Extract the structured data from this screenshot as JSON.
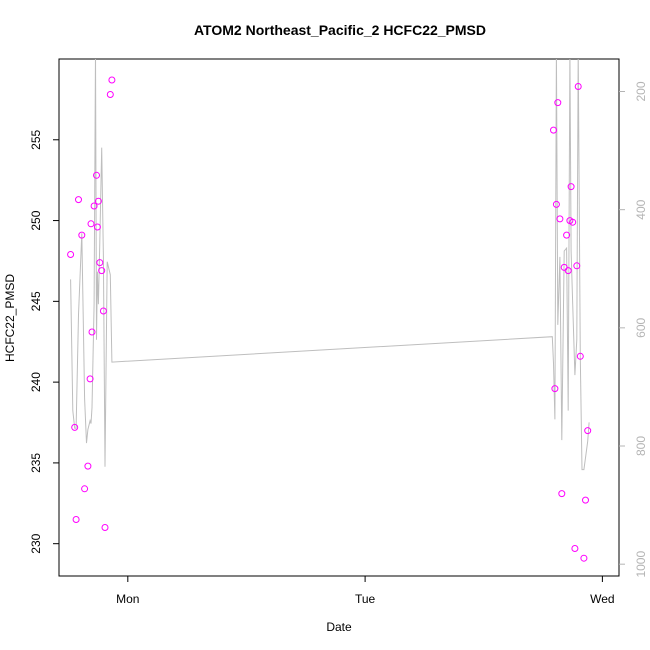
{
  "chart_data": {
    "type": "scatter",
    "title": "ATOM2 Northeast_Pacific_2 HCFC22_PMSD",
    "xlabel": "Date",
    "ylabel": "HCFC22_PMSD",
    "x_ticks": [
      {
        "x": 1.0,
        "label": "Mon"
      },
      {
        "x": 2.0,
        "label": "Tue"
      },
      {
        "x": 3.0,
        "label": "Wed"
      }
    ],
    "y_ticks": [
      230,
      235,
      240,
      245,
      250,
      255
    ],
    "y_right_ticks": [
      200,
      400,
      600,
      800,
      1000
    ],
    "xlim": [
      0.71,
      3.07
    ],
    "ylim": [
      228.0,
      260.0
    ],
    "y_right_lim": [
      145,
      1020
    ],
    "colors": {
      "points": "#ff00ff",
      "line": "#bebebe",
      "axis": "#000000",
      "right_axis": "#b4b4b4"
    },
    "series": [
      {
        "type": "points",
        "x": [
          0.759,
          0.776,
          0.782,
          0.792,
          0.806,
          0.818,
          0.832,
          0.841,
          0.845,
          0.849,
          0.858,
          0.868,
          0.872,
          0.876,
          0.882,
          0.89,
          0.897,
          0.904,
          0.926,
          0.933,
          2.794,
          2.8,
          2.806,
          2.812,
          2.821,
          2.829,
          2.839,
          2.849,
          2.856,
          2.863,
          2.868,
          2.875,
          2.884,
          2.892,
          2.898,
          2.907,
          2.922,
          2.929,
          2.938
        ],
        "y": [
          247.9,
          237.2,
          231.5,
          251.3,
          249.1,
          233.4,
          234.8,
          240.2,
          249.8,
          243.1,
          250.9,
          252.8,
          249.6,
          251.2,
          247.4,
          246.9,
          244.4,
          231.0,
          257.8,
          258.7,
          255.6,
          239.6,
          251.0,
          257.3,
          250.1,
          233.1,
          247.1,
          249.1,
          246.9,
          250.0,
          252.1,
          249.9,
          229.7,
          247.2,
          258.3,
          241.6,
          229.1,
          232.7,
          237.0
        ]
      },
      {
        "type": "line",
        "x": [
          0.759,
          0.768,
          0.776,
          0.782,
          0.792,
          0.806,
          0.818,
          0.826,
          0.832,
          0.841,
          0.845,
          0.849,
          0.858,
          0.864,
          0.868,
          0.872,
          0.876,
          0.882,
          0.89,
          0.897,
          0.904,
          0.913,
          0.926,
          0.933,
          2.789,
          2.794,
          2.8,
          2.806,
          2.812,
          2.821,
          2.829,
          2.839,
          2.849,
          2.856,
          2.863,
          2.868,
          2.875,
          2.884,
          2.892,
          2.898,
          2.907,
          2.914,
          2.922,
          2.929,
          2.938,
          2.944
        ],
        "y_right": [
          518,
          740,
          770,
          770,
          578,
          440,
          720,
          795,
          772,
          757,
          762,
          735,
          560,
          130,
          620,
          505,
          560,
          455,
          295,
          480,
          835,
          488,
          510,
          658,
          615,
          660,
          755,
          130,
          595,
          480,
          790,
          470,
          465,
          740,
          130,
          470,
          560,
          680,
          620,
          130,
          650,
          840,
          840,
          820,
          792,
          760
        ]
      }
    ]
  }
}
